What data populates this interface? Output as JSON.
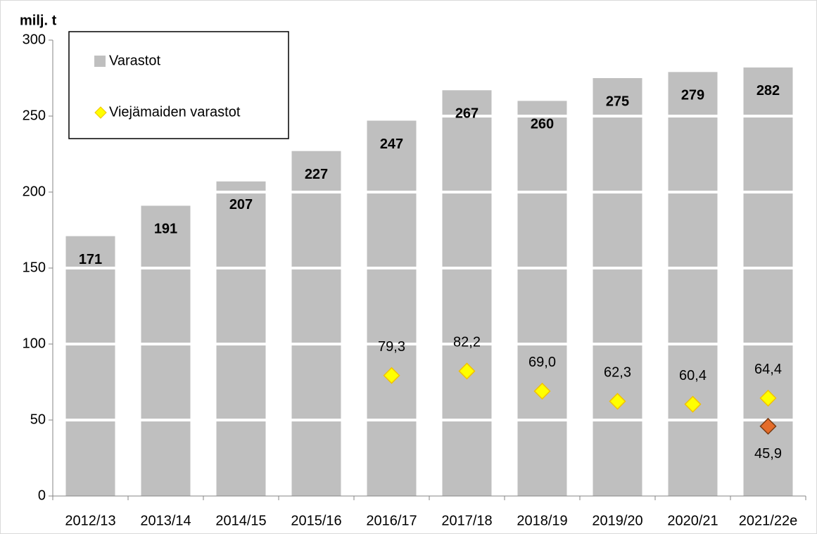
{
  "chart_data": {
    "type": "bar",
    "y_label": "milj. t",
    "categories": [
      "2012/13",
      "2013/14",
      "2014/15",
      "2015/16",
      "2016/17",
      "2017/18",
      "2018/19",
      "2019/20",
      "2020/21",
      "2021/22e"
    ],
    "series": [
      {
        "name": "Varastot",
        "type": "bar",
        "color": "#bfbfbf",
        "values": [
          171,
          191,
          207,
          227,
          247,
          267,
          260,
          275,
          279,
          282
        ]
      },
      {
        "name": "Viejämaiden varastot",
        "type": "scatter",
        "color": "#ffff00",
        "values": [
          null,
          null,
          null,
          null,
          79.3,
          82.2,
          69.0,
          62.3,
          60.4,
          64.4
        ],
        "value_labels": [
          null,
          null,
          null,
          null,
          "79,3",
          "82,2",
          "69,0",
          "62,3",
          "60,4",
          "64,4"
        ]
      },
      {
        "type": "scatter",
        "color": "#e46c2a",
        "values": [
          null,
          null,
          null,
          null,
          null,
          null,
          null,
          null,
          null,
          45.9
        ],
        "value_labels": [
          null,
          null,
          null,
          null,
          null,
          null,
          null,
          null,
          null,
          "45,9"
        ]
      }
    ],
    "ylim": [
      0,
      300
    ],
    "yticks": [
      0,
      50,
      100,
      150,
      200,
      250,
      300
    ],
    "grid": true,
    "legend": "top-left"
  }
}
